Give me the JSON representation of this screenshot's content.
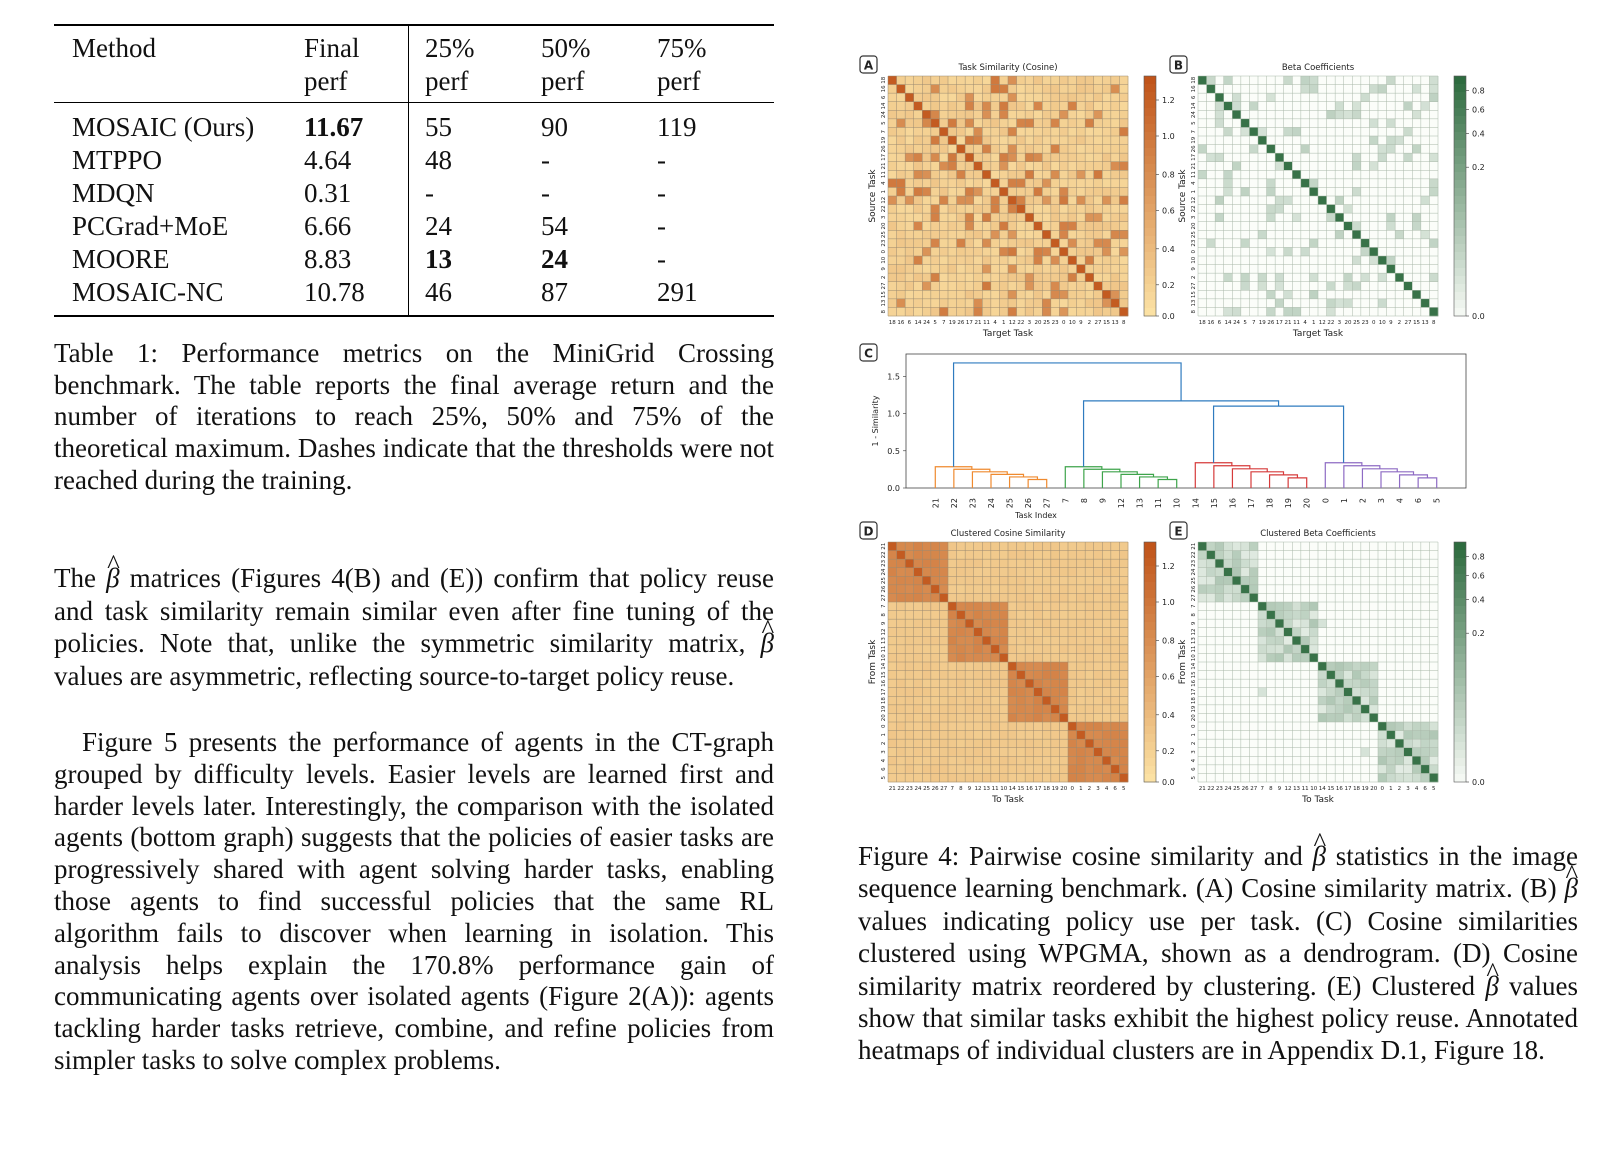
{
  "table": {
    "headers": [
      [
        "Method",
        ""
      ],
      [
        "Final",
        "perf"
      ],
      [
        "25%",
        "perf"
      ],
      [
        "50%",
        "perf"
      ],
      [
        "75%",
        "perf"
      ]
    ],
    "rows": [
      [
        "MOSAIC (Ours)",
        "11.67",
        "55",
        "90",
        "119"
      ],
      [
        "MTPPO",
        "4.64",
        "48",
        "-",
        "-"
      ],
      [
        "MDQN",
        "0.31",
        "-",
        "-",
        "-"
      ],
      [
        "PCGrad+MoE",
        "6.66",
        "24",
        "54",
        "-"
      ],
      [
        "MOORE",
        "8.83",
        "13",
        "24",
        "-"
      ],
      [
        "MOSAIC-NC",
        "10.78",
        "46",
        "87",
        "291"
      ]
    ],
    "bold_cells": [
      [
        0,
        1
      ],
      [
        4,
        2
      ],
      [
        4,
        3
      ]
    ]
  },
  "table_caption": "Table 1: Performance metrics on the MiniGrid Crossing benchmark. The table reports the final average return and the number of iterations to reach 25%, 50% and 75% of the theoretical maximum. Dashes indicate that the thresholds were not reached during the training.",
  "para1": {
    "a": "The ",
    "b": " matrices (Figures 4(B) and (E)) confirm that policy reuse and task similarity remain similar even after fine tuning of the policies. Note that, unlike the symmetric similarity matrix, ",
    "c": " values are asymmetric, reflecting source-to-target policy reuse."
  },
  "para2": "Figure 5 presents the performance of agents in the CT-graph grouped by difficulty levels. Easier levels are learned first and harder levels later. Interestingly, the comparison with the isolated agents (bottom graph) suggests that the policies of easier tasks are progressively shared with agent solving harder tasks, enabling those agents to find successful policies that the same RL algorithm fails to discover when learning in isolation. This analysis helps explain the 170.8% performance gain of communicating agents over isolated agents (Figure 2(A)): agents tackling harder tasks retrieve, combine, and refine policies from simpler tasks to solve complex problems.",
  "beta_symbol": "β",
  "figure_caption": {
    "a": "Figure 4: Pairwise cosine similarity and ",
    "b": " statistics in the image sequence learning benchmark. (A) Cosine similarity matrix. (B) ",
    "c": " values indicating policy use per task. (C) Cosine similarities clustered using WPGMA, shown as a dendrogram. (D) Cosine similarity matrix reordered by clustering. (E) Clustered ",
    "d": " values show that similar tasks exhibit the highest policy reuse. Annotated heatmaps of individual clusters are in Appendix D.1, Figure 18."
  },
  "figure": {
    "colors": {
      "orange_dark": "#c0541a",
      "orange_light": "#fbd48a",
      "green_dark": "#2e6b3f",
      "green_light": "#f2f9ef",
      "blue": "#2f7bbf",
      "c_orange": "#ef8a2f",
      "c_green": "#3ea44b",
      "c_red": "#d63b3b",
      "c_purple": "#8e6bc4"
    },
    "panel_A": {
      "letter": "A",
      "title": "Task Similarity (Cosine)",
      "xlabel": "Target Task",
      "ylabel": "Source Task",
      "order": [
        "18",
        "16",
        "6",
        "14",
        "24",
        "5",
        "7",
        "19",
        "26",
        "17",
        "21",
        "11",
        "4",
        "1",
        "12",
        "22",
        "3",
        "20",
        "25",
        "23",
        "0",
        "10",
        "9",
        "2",
        "27",
        "15",
        "13",
        "8"
      ],
      "colorbar_ticks": [
        "1.2",
        "1.0",
        "0.8",
        "0.6",
        "0.4",
        "0.2",
        "0.0"
      ]
    },
    "panel_B": {
      "letter": "B",
      "title": "Beta Coefficients",
      "xlabel": "Target Task",
      "ylabel": "Source Task",
      "colorbar_ticks": [
        "0.8",
        "0.6",
        "0.4",
        "0.2",
        "0.0"
      ]
    },
    "panel_C": {
      "letter": "C",
      "xlabel": "Task Index",
      "ylabel": "1 - Similarity",
      "yticks": [
        "1.5",
        "1.0",
        "0.5",
        "0.0"
      ],
      "leaf_order": [
        "21",
        "22",
        "23",
        "24",
        "25",
        "26",
        "27",
        "7",
        "8",
        "9",
        "12",
        "13",
        "11",
        "10",
        "14",
        "15",
        "16",
        "17",
        "18",
        "19",
        "20",
        "0",
        "1",
        "2",
        "3",
        "4",
        "6",
        "5"
      ],
      "clusters": [
        {
          "leaves": [
            0,
            6
          ],
          "height": 0.32
        },
        {
          "leaves": [
            7,
            13
          ],
          "height": 0.32
        },
        {
          "leaves": [
            14,
            20
          ],
          "height": 0.38
        },
        {
          "leaves": [
            21,
            27
          ],
          "height": 0.38
        }
      ]
    },
    "panel_D": {
      "letter": "D",
      "title": "Clustered Cosine Similarity",
      "xlabel": "To Task",
      "ylabel": "From Task",
      "order": [
        "21",
        "22",
        "23",
        "24",
        "25",
        "26",
        "27",
        "7",
        "8",
        "9",
        "12",
        "13",
        "11",
        "10",
        "14",
        "15",
        "16",
        "17",
        "18",
        "19",
        "20",
        "0",
        "1",
        "2",
        "3",
        "4",
        "6",
        "5"
      ],
      "colorbar_ticks": [
        "1.2",
        "1.0",
        "0.8",
        "0.6",
        "0.4",
        "0.2",
        "0.0"
      ]
    },
    "panel_E": {
      "letter": "E",
      "title": "Clustered Beta Coefficients",
      "xlabel": "To Task",
      "ylabel": "From Task",
      "colorbar_ticks": [
        "0.8",
        "0.6",
        "0.4",
        "0.2",
        "0.0"
      ]
    }
  }
}
